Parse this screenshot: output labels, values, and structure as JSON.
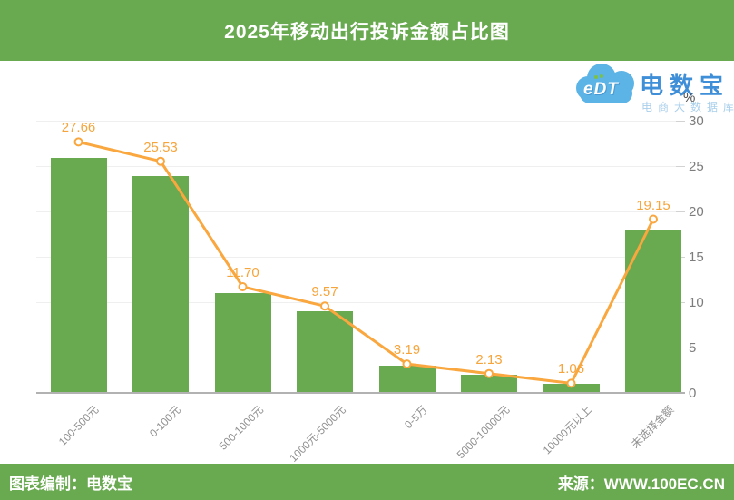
{
  "header": {
    "title": "2025年移动出行投诉金额占比图"
  },
  "logo": {
    "cloud_text": "eDT",
    "brand": "电数宝",
    "subtitle": "电商大数据库"
  },
  "footer": {
    "left": "图表编制：电数宝",
    "right": "来源：WWW.100EC.CN"
  },
  "chart_data": {
    "type": "bar",
    "title": "2025年移动出行投诉金额占比图",
    "categories": [
      "100-500元",
      "0-100元",
      "500-1000元",
      "1000元-5000元",
      "0-5万",
      "5000-10000元",
      "10000元以上",
      "未选择金额"
    ],
    "values": [
      27.66,
      25.53,
      11.7,
      9.57,
      3.19,
      2.13,
      1.06,
      19.15
    ],
    "value_labels": [
      "27.66",
      "25.53",
      "11.70",
      "9.57",
      "3.19",
      "2.13",
      "1.06",
      "19.15"
    ],
    "unit": "%",
    "yticks": [
      0,
      5,
      10,
      15,
      20,
      25,
      30
    ],
    "ylim": [
      0,
      30
    ],
    "grid": true,
    "legend": "none",
    "overlay_line": true
  },
  "colors": {
    "green": "#69a950",
    "bar": "#69a950",
    "line": "#f9a73e",
    "marker_fill": "#ffffff",
    "value_label": "#f6a53c",
    "logo_blue": "#3e8ed8",
    "logo_cloud": "#5bb3e6",
    "logo_sub": "#a9cfeb"
  }
}
